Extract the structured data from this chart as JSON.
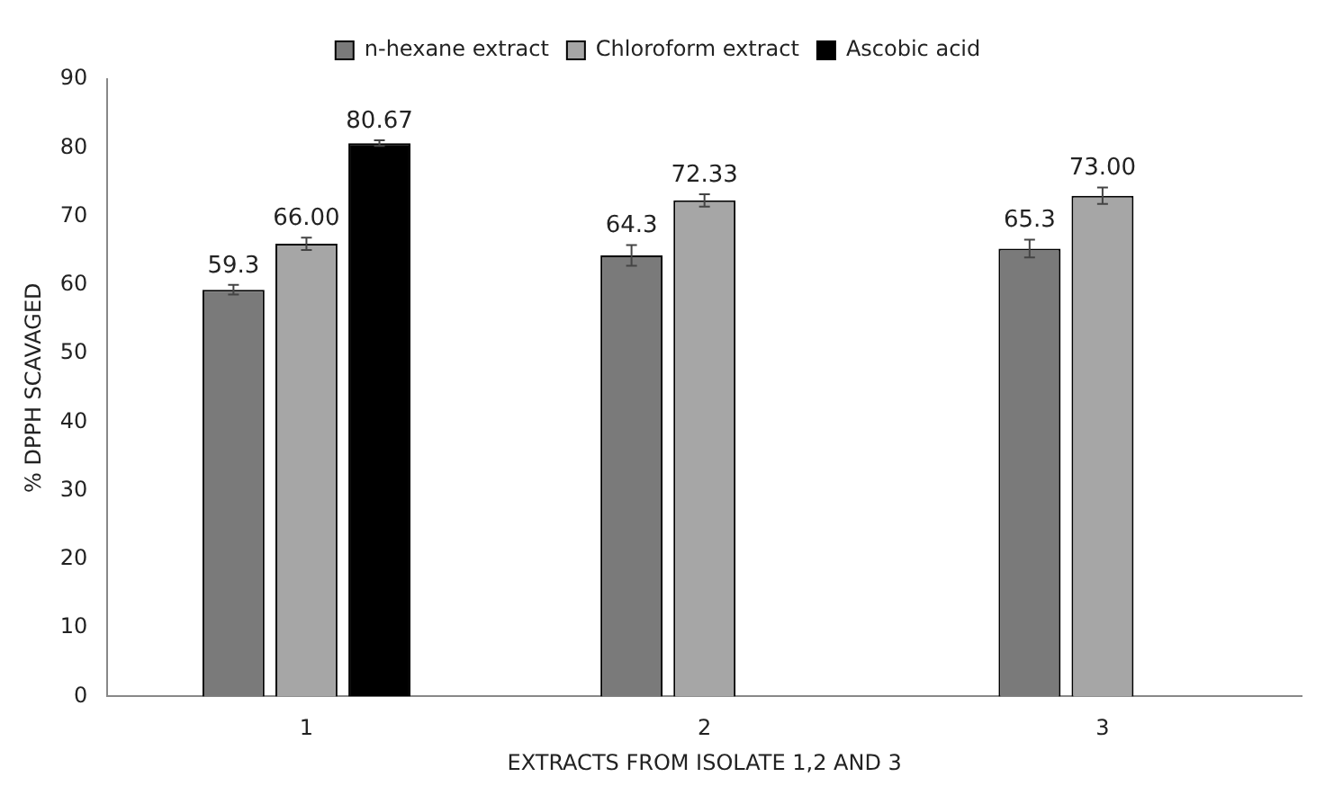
{
  "chart_data": {
    "type": "bar",
    "xlabel": "EXTRACTS FROM ISOLATE 1,2 AND 3",
    "ylabel": "% DPPH SCAVAGED",
    "categories": [
      "1",
      "2",
      "3"
    ],
    "series": [
      {
        "name": "n-hexane extract",
        "color": "#7a7a7a",
        "values": [
          59.3,
          64.3,
          65.3
        ],
        "errors": [
          0.7,
          1.5,
          1.3
        ],
        "value_labels": [
          "59.3",
          "64.3",
          "65.3"
        ]
      },
      {
        "name": "Chloroform extract",
        "color": "#a6a6a6",
        "values": [
          66.0,
          72.33,
          73.0
        ],
        "errors": [
          0.9,
          0.9,
          1.2
        ],
        "value_labels": [
          "66.00",
          "72.33",
          "73.00"
        ]
      },
      {
        "name": "Ascobic acid",
        "color": "#000000",
        "values": [
          80.67,
          null,
          null
        ],
        "errors": [
          0.4,
          null,
          null
        ],
        "value_labels": [
          "80.67",
          null,
          null
        ]
      }
    ],
    "ylim": [
      0,
      90
    ],
    "yticks": [
      0,
      10,
      20,
      30,
      40,
      50,
      60,
      70,
      80,
      90
    ],
    "grid": false,
    "legend": "top"
  }
}
